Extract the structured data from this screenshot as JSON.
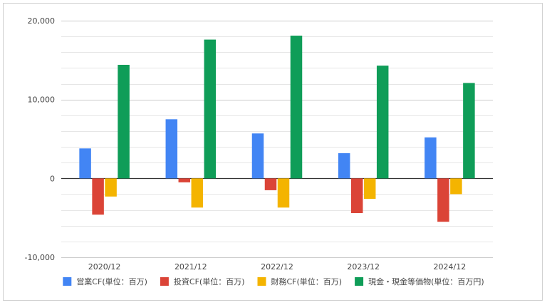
{
  "chart_data": {
    "type": "bar",
    "title": "",
    "xlabel": "",
    "ylabel": "",
    "categories": [
      "2020/12",
      "2021/12",
      "2022/12",
      "2023/12",
      "2024/12"
    ],
    "ylim": [
      -10000,
      20000
    ],
    "yticks": [
      -10000,
      0,
      10000,
      20000
    ],
    "ytick_labels": [
      "-10,000",
      "0",
      "10,000",
      "20,000"
    ],
    "grid": true,
    "legend_position": "bottom",
    "series": [
      {
        "name": "営業CF(単位：百万)",
        "color": "#4285f4",
        "values": [
          3800,
          7500,
          5700,
          3200,
          5200
        ]
      },
      {
        "name": "投資CF(単位：百万)",
        "color": "#db4437",
        "values": [
          -4600,
          -500,
          -1500,
          -4400,
          -5500
        ]
      },
      {
        "name": "財務CF(単位：百万)",
        "color": "#f4b400",
        "values": [
          -2300,
          -3700,
          -3700,
          -2600,
          -2000
        ]
      },
      {
        "name": "現金・現金等価物(単位：百万円)",
        "color": "#0f9d58",
        "values": [
          14400,
          17600,
          18100,
          14300,
          12100
        ]
      }
    ]
  }
}
